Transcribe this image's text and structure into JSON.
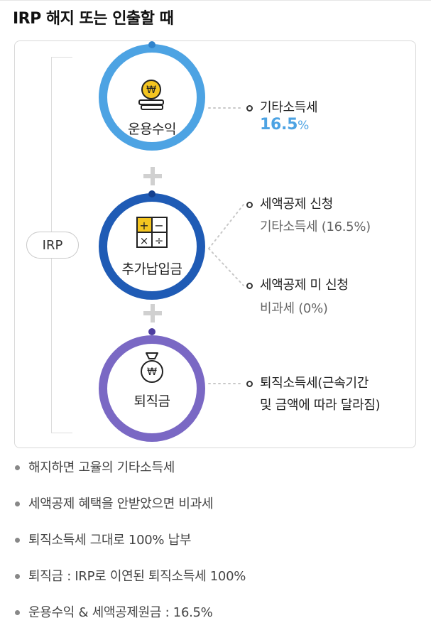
{
  "heading": "IRP 해지 또는 인출할 때",
  "irp_label": "IRP",
  "sources": [
    {
      "label": "운용수익",
      "icon": "coin-stack-icon",
      "color": "#4da3e3"
    },
    {
      "label": "추가납입금",
      "icon": "calculator-icon",
      "color": "#1f5bb5"
    },
    {
      "label": "퇴직금",
      "icon": "money-bag-icon",
      "color": "#7a68c4"
    }
  ],
  "outcomes": {
    "investment": {
      "title": "기타소득세",
      "rate": "16.5",
      "unit": "%"
    },
    "deduction_applied": {
      "title": "세액공제 신청",
      "detail": "기타소득세 (16.5%)"
    },
    "deduction_not_applied": {
      "title": "세액공제 미 신청",
      "detail": "비과세 (0%)"
    },
    "severance": {
      "line1": "퇴직소득세(근속기간",
      "line2": "및 금액에 따라 달라짐)"
    }
  },
  "notes": [
    "해지하면 고율의 기타소득세",
    "세액공제 혜택을 안받았으면 비과세",
    "퇴직소득세 그대로 100% 납부",
    "퇴직금 : IRP로 이연된 퇴직소득세 100%",
    "운용수익 & 세액공제원금 : 16.5%"
  ],
  "currency_symbol": "₩",
  "calc_keys": [
    "+",
    "−",
    "×",
    "÷"
  ]
}
